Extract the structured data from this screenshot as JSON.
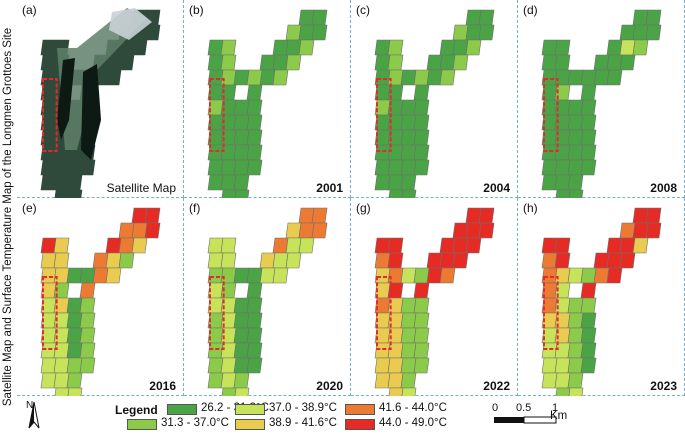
{
  "side_title": "Satellite Map and Surface Temperature Map of the Longmen Grottoes Site",
  "colors": {
    "c1": "#4aa445",
    "c2": "#8cca4a",
    "c3": "#c7e35a",
    "c4": "#e9cc4f",
    "c5": "#ec7a32",
    "c6": "#e62b25",
    "grid_line": "#6e6e6e",
    "highlight": "#e32b2b",
    "panel_border": "#7aaed6"
  },
  "panels": [
    {
      "letter": "(a)",
      "caption": "Satellite Map",
      "year": "",
      "kind": "satellite"
    },
    {
      "letter": "(b)",
      "caption": "",
      "year": "2001",
      "kind": "temperature",
      "cells": [
        "c1",
        "c1",
        "c2",
        "c1",
        "c1",
        "c1",
        "c1",
        "c2",
        "c1",
        "c1",
        "c2",
        "c1",
        "c2",
        "c1",
        "c2",
        "c1",
        "c2",
        "c1",
        "c2",
        "c1",
        "c2",
        "c1",
        "c1",
        "c1",
        "c2",
        "c1",
        "c1",
        "c1",
        "c1",
        "c1",
        "c1",
        "c1",
        "c1",
        "c1",
        "c1",
        "c1",
        "c1",
        "c1",
        "c1",
        "c1",
        "c1",
        "c1",
        "c1",
        "c1",
        "c1",
        "c1",
        "c1",
        "c1",
        "c1"
      ]
    },
    {
      "letter": "(c)",
      "caption": "",
      "year": "2004",
      "kind": "temperature",
      "cells": [
        "c1",
        "c1",
        "c2",
        "c1",
        "c1",
        "c1",
        "c1",
        "c2",
        "c1",
        "c1",
        "c2",
        "c1",
        "c2",
        "c1",
        "c2",
        "c1",
        "c2",
        "c1",
        "c2",
        "c1",
        "c2",
        "c1",
        "c1",
        "c1",
        "c2",
        "c1",
        "c1",
        "c1",
        "c1",
        "c1",
        "c1",
        "c1",
        "c1",
        "c1",
        "c1",
        "c1",
        "c1",
        "c1",
        "c1",
        "c1",
        "c1",
        "c1",
        "c1",
        "c1",
        "c1",
        "c1",
        "c1",
        "c1",
        "c1"
      ]
    },
    {
      "letter": "(d)",
      "caption": "",
      "year": "2008",
      "kind": "temperature",
      "cells": [
        "c1",
        "c1",
        "c1",
        "c1",
        "c1",
        "c1",
        "c3",
        "c2",
        "c1",
        "c1",
        "c1",
        "c1",
        "c1",
        "c1",
        "c1",
        "c1",
        "c1",
        "c1",
        "c1",
        "c1",
        "c1",
        "c1",
        "c2",
        "c1",
        "c1",
        "c1",
        "c1",
        "c1",
        "c1",
        "c1",
        "c1",
        "c1",
        "c1",
        "c1",
        "c1",
        "c1",
        "c1",
        "c1",
        "c1",
        "c1",
        "c1",
        "c1",
        "c1",
        "c1",
        "c1",
        "c1",
        "c1",
        "c1",
        "c1"
      ]
    },
    {
      "letter": "(e)",
      "caption": "",
      "year": "2016",
      "kind": "temperature",
      "cells": [
        "c6",
        "c6",
        "c5",
        "c5",
        "c6",
        "c6",
        "c5",
        "c4",
        "c5",
        "c4",
        "c2",
        "c5",
        "c4",
        "c6",
        "c4",
        "c4",
        "c4",
        "c4",
        "c4",
        "c1",
        "c1",
        "c4",
        "c2",
        "c5",
        "c3",
        "c4",
        "c1",
        "c2",
        "c3",
        "c3",
        "c1",
        "c2",
        "c3",
        "c3",
        "c1",
        "c2",
        "c3",
        "c3",
        "c1",
        "c2",
        "c3",
        "c3",
        "c2",
        "c2",
        "c3",
        "c3",
        "c2",
        "c3",
        "c3"
      ]
    },
    {
      "letter": "(f)",
      "caption": "",
      "year": "2020",
      "kind": "temperature",
      "cells": [
        "c5",
        "c5",
        "c4",
        "c5",
        "c5",
        "c5",
        "c3",
        "c3",
        "c4",
        "c3",
        "c3",
        "c3",
        "c3",
        "c3",
        "c3",
        "c3",
        "c3",
        "c2",
        "c2",
        "c1",
        "c1",
        "c3",
        "c2",
        "c1",
        "c3",
        "c3",
        "c1",
        "c1",
        "c2",
        "c3",
        "c1",
        "c1",
        "c2",
        "c3",
        "c1",
        "c1",
        "c2",
        "c3",
        "c1",
        "c1",
        "c2",
        "c3",
        "c1",
        "c1",
        "c2",
        "c3",
        "c2",
        "c2",
        "c3"
      ]
    },
    {
      "letter": "(g)",
      "caption": "",
      "year": "2022",
      "kind": "temperature",
      "cells": [
        "c6",
        "c6",
        "c6",
        "c6",
        "c6",
        "c6",
        "c6",
        "c6",
        "c6",
        "c6",
        "c6",
        "c6",
        "c5",
        "c6",
        "c6",
        "c5",
        "c6",
        "c4",
        "c5",
        "c3",
        "c2",
        "c4",
        "c6",
        "c6",
        "c5",
        "c4",
        "c2",
        "c2",
        "c4",
        "c4",
        "c2",
        "c2",
        "c4",
        "c4",
        "c2",
        "c2",
        "c4",
        "c4",
        "c2",
        "c2",
        "c4",
        "c4",
        "c2",
        "c2",
        "c4",
        "c4",
        "c2",
        "c4",
        "c3"
      ]
    },
    {
      "letter": "(h)",
      "caption": "",
      "year": "2023",
      "kind": "temperature",
      "cells": [
        "c6",
        "c6",
        "c5",
        "c6",
        "c6",
        "c6",
        "c6",
        "c4",
        "c6",
        "c6",
        "c6",
        "c5",
        "c6",
        "c6",
        "c6",
        "c5",
        "c6",
        "c5",
        "c4",
        "c3",
        "c2",
        "c5",
        "c3",
        "c6",
        "c5",
        "c3",
        "c2",
        "c2",
        "c4",
        "c4",
        "c2",
        "c1",
        "c3",
        "c4",
        "c2",
        "c1",
        "c3",
        "c3",
        "c2",
        "c1",
        "c3",
        "c3",
        "c2",
        "c1",
        "c3",
        "c3",
        "c2",
        "c2",
        "c3"
      ]
    }
  ],
  "legend": {
    "title": "Legend",
    "items": [
      {
        "label": "26.2 - 31.3°C",
        "color_key": "c1"
      },
      {
        "label": "31.3 - 37.0°C",
        "color_key": "c2"
      },
      {
        "label": "37.0 - 38.9°C",
        "color_key": "c3"
      },
      {
        "label": "38.9 - 41.6°C",
        "color_key": "c4"
      },
      {
        "label": "41.6 - 44.0°C",
        "color_key": "c5"
      },
      {
        "label": "44.0 - 49.0°C",
        "color_key": "c6"
      }
    ]
  },
  "north_arrow": {
    "label": "N",
    "icon": "north-arrow-icon"
  },
  "scale_bar": {
    "ticks": [
      "0",
      "0.5",
      "1"
    ],
    "unit": "Km"
  }
}
